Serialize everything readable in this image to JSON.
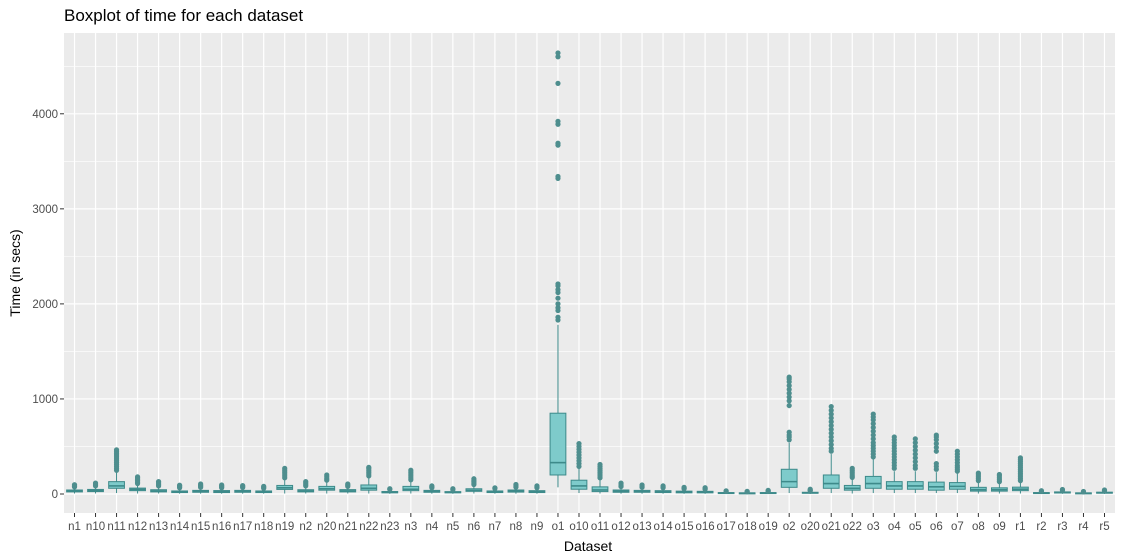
{
  "chart_data": {
    "type": "boxplot",
    "title": "Boxplot of time for each dataset",
    "xlabel": "Dataset",
    "ylabel": "Time (in secs)",
    "ylim": [
      -200,
      4850
    ],
    "yticks": [
      0,
      1000,
      2000,
      3000,
      4000
    ],
    "grid": true,
    "legend": "none",
    "colors": {
      "panel": "#ebebeb",
      "grid": "#ffffff",
      "box_fill": "#7ecbcb",
      "box_line": "#3d8a8a",
      "outlier": "#4e8e8e"
    },
    "categories": [
      "n1",
      "n10",
      "n11",
      "n12",
      "n13",
      "n14",
      "n15",
      "n16",
      "n17",
      "n18",
      "n19",
      "n2",
      "n20",
      "n21",
      "n22",
      "n23",
      "n3",
      "n4",
      "n5",
      "n6",
      "n7",
      "n8",
      "n9",
      "o1",
      "o10",
      "o11",
      "o12",
      "o13",
      "o14",
      "o15",
      "o16",
      "o17",
      "o18",
      "o19",
      "o2",
      "o20",
      "o21",
      "o22",
      "o3",
      "o4",
      "o5",
      "o6",
      "o7",
      "o8",
      "o9",
      "r1",
      "r2",
      "r3",
      "r4",
      "r5"
    ],
    "boxes": [
      {
        "q1": 22,
        "median": 32,
        "q3": 42,
        "whisker_low": 5,
        "whisker_high": 65,
        "outliers": [
          75,
          82,
          90,
          98
        ]
      },
      {
        "q1": 25,
        "median": 35,
        "q3": 48,
        "whisker_low": 5,
        "whisker_high": 75,
        "outliers": [
          85,
          95,
          105,
          115
        ]
      },
      {
        "q1": 60,
        "median": 85,
        "q3": 130,
        "whisker_low": 10,
        "whisker_high": 230,
        "outliers": [
          250,
          270,
          290,
          310,
          330,
          350,
          370,
          390,
          410,
          430,
          450,
          465
        ]
      },
      {
        "q1": 35,
        "median": 48,
        "q3": 62,
        "whisker_low": 5,
        "whisker_high": 100,
        "outliers": [
          110,
          125,
          140,
          155,
          170,
          180
        ]
      },
      {
        "q1": 22,
        "median": 32,
        "q3": 45,
        "whisker_low": 5,
        "whisker_high": 75,
        "outliers": [
          85,
          100,
          115,
          130
        ]
      },
      {
        "q1": 15,
        "median": 22,
        "q3": 32,
        "whisker_low": 3,
        "whisker_high": 55,
        "outliers": [
          65,
          75,
          85,
          92
        ]
      },
      {
        "q1": 18,
        "median": 28,
        "q3": 38,
        "whisker_low": 3,
        "whisker_high": 60,
        "outliers": [
          70,
          80,
          92,
          105
        ]
      },
      {
        "q1": 15,
        "median": 25,
        "q3": 36,
        "whisker_low": 3,
        "whisker_high": 55,
        "outliers": [
          65,
          75,
          85,
          95
        ]
      },
      {
        "q1": 18,
        "median": 27,
        "q3": 38,
        "whisker_low": 3,
        "whisker_high": 58,
        "outliers": [
          68,
          78,
          88
        ]
      },
      {
        "q1": 15,
        "median": 22,
        "q3": 32,
        "whisker_low": 3,
        "whisker_high": 50,
        "outliers": [
          60,
          70,
          80
        ]
      },
      {
        "q1": 48,
        "median": 65,
        "q3": 90,
        "whisker_low": 5,
        "whisker_high": 155,
        "outliers": [
          170,
          190,
          210,
          230,
          250,
          270
        ]
      },
      {
        "q1": 22,
        "median": 32,
        "q3": 45,
        "whisker_low": 5,
        "whisker_high": 70,
        "outliers": [
          85,
          100,
          115,
          130
        ]
      },
      {
        "q1": 40,
        "median": 55,
        "q3": 80,
        "whisker_low": 5,
        "whisker_high": 130,
        "outliers": [
          145,
          160,
          180,
          200
        ]
      },
      {
        "q1": 22,
        "median": 32,
        "q3": 46,
        "whisker_low": 5,
        "whisker_high": 70,
        "outliers": [
          80,
          92,
          105
        ]
      },
      {
        "q1": 40,
        "median": 60,
        "q3": 95,
        "whisker_low": 5,
        "whisker_high": 170,
        "outliers": [
          190,
          210,
          230,
          250,
          270,
          280
        ]
      },
      {
        "q1": 12,
        "median": 18,
        "q3": 26,
        "whisker_low": 2,
        "whisker_high": 40,
        "outliers": [
          48,
          55
        ]
      },
      {
        "q1": 35,
        "median": 50,
        "q3": 80,
        "whisker_low": 5,
        "whisker_high": 140,
        "outliers": [
          150,
          170,
          190,
          210,
          230,
          250
        ]
      },
      {
        "q1": 18,
        "median": 27,
        "q3": 38,
        "whisker_low": 3,
        "whisker_high": 55,
        "outliers": [
          65,
          75,
          85
        ]
      },
      {
        "q1": 12,
        "median": 18,
        "q3": 25,
        "whisker_low": 2,
        "whisker_high": 38,
        "outliers": [
          45,
          55
        ]
      },
      {
        "q1": 28,
        "median": 38,
        "q3": 55,
        "whisker_low": 5,
        "whisker_high": 85,
        "outliers": [
          100,
          115,
          130,
          145,
          160
        ]
      },
      {
        "q1": 15,
        "median": 22,
        "q3": 32,
        "whisker_low": 3,
        "whisker_high": 48,
        "outliers": [
          58,
          65
        ]
      },
      {
        "q1": 20,
        "median": 30,
        "q3": 42,
        "whisker_low": 3,
        "whisker_high": 62,
        "outliers": [
          72,
          85,
          100
        ]
      },
      {
        "q1": 15,
        "median": 24,
        "q3": 35,
        "whisker_low": 3,
        "whisker_high": 55,
        "outliers": [
          65,
          75,
          85
        ]
      },
      {
        "q1": 200,
        "median": 330,
        "q3": 850,
        "whisker_low": 70,
        "whisker_high": 1780,
        "outliers": [
          1830,
          1860,
          1930,
          1960,
          2000,
          2060,
          2120,
          2150,
          2190,
          2210,
          3320,
          3340,
          3670,
          3690,
          3890,
          3920,
          4320,
          4600,
          4640
        ]
      },
      {
        "q1": 50,
        "median": 85,
        "q3": 145,
        "whisker_low": 10,
        "whisker_high": 270,
        "outliers": [
          290,
          320,
          350,
          380,
          410,
          440,
          470,
          500,
          530
        ]
      },
      {
        "q1": 25,
        "median": 42,
        "q3": 75,
        "whisker_low": 5,
        "whisker_high": 150,
        "outliers": [
          170,
          190,
          210,
          230,
          250,
          270,
          290,
          310
        ]
      },
      {
        "q1": 18,
        "median": 28,
        "q3": 42,
        "whisker_low": 3,
        "whisker_high": 65,
        "outliers": [
          78,
          90,
          105,
          115
        ]
      },
      {
        "q1": 18,
        "median": 26,
        "q3": 38,
        "whisker_low": 3,
        "whisker_high": 60,
        "outliers": [
          70,
          82,
          95
        ]
      },
      {
        "q1": 15,
        "median": 24,
        "q3": 35,
        "whisker_low": 3,
        "whisker_high": 55,
        "outliers": [
          65,
          75,
          85
        ]
      },
      {
        "q1": 12,
        "median": 20,
        "q3": 30,
        "whisker_low": 2,
        "whisker_high": 45,
        "outliers": [
          55,
          62,
          70
        ]
      },
      {
        "q1": 12,
        "median": 18,
        "q3": 28,
        "whisker_low": 2,
        "whisker_high": 42,
        "outliers": [
          50,
          58,
          66
        ]
      },
      {
        "q1": 6,
        "median": 10,
        "q3": 15,
        "whisker_low": 1,
        "whisker_high": 22,
        "outliers": [
          28,
          33
        ]
      },
      {
        "q1": 5,
        "median": 8,
        "q3": 12,
        "whisker_low": 1,
        "whisker_high": 18,
        "outliers": [
          24,
          28
        ]
      },
      {
        "q1": 6,
        "median": 10,
        "q3": 15,
        "whisker_low": 1,
        "whisker_high": 22,
        "outliers": [
          28,
          33,
          38
        ]
      },
      {
        "q1": 70,
        "median": 130,
        "q3": 260,
        "whisker_low": 10,
        "whisker_high": 540,
        "outliers": [
          570,
          600,
          620,
          650,
          930,
          980,
          1020,
          1060,
          1100,
          1140,
          1180,
          1210,
          1230
        ]
      },
      {
        "q1": 8,
        "median": 12,
        "q3": 18,
        "whisker_low": 1,
        "whisker_high": 28,
        "outliers": [
          35,
          40,
          50
        ]
      },
      {
        "q1": 60,
        "median": 110,
        "q3": 200,
        "whisker_low": 10,
        "whisker_high": 420,
        "outliers": [
          450,
          480,
          520,
          560,
          600,
          640,
          680,
          720,
          760,
          800,
          840,
          880,
          920
        ]
      },
      {
        "q1": 40,
        "median": 60,
        "q3": 90,
        "whisker_low": 5,
        "whisker_high": 160,
        "outliers": [
          175,
          190,
          210,
          230,
          250,
          270
        ]
      },
      {
        "q1": 60,
        "median": 110,
        "q3": 185,
        "whisker_low": 10,
        "whisker_high": 370,
        "outliers": [
          390,
          420,
          450,
          480,
          510,
          540,
          580,
          620,
          660,
          700,
          740,
          780,
          810,
          840
        ]
      },
      {
        "q1": 50,
        "median": 85,
        "q3": 130,
        "whisker_low": 10,
        "whisker_high": 240,
        "outliers": [
          270,
          300,
          330,
          360,
          390,
          420,
          450,
          480,
          510,
          540,
          570,
          600
        ]
      },
      {
        "q1": 50,
        "median": 85,
        "q3": 130,
        "whisker_low": 10,
        "whisker_high": 240,
        "outliers": [
          270,
          300,
          340,
          380,
          420,
          460,
          500,
          540,
          580
        ]
      },
      {
        "q1": 40,
        "median": 75,
        "q3": 125,
        "whisker_low": 10,
        "whisker_high": 230,
        "outliers": [
          260,
          290,
          320,
          450,
          490,
          530,
          570,
          600,
          620
        ]
      },
      {
        "q1": 50,
        "median": 80,
        "q3": 120,
        "whisker_low": 10,
        "whisker_high": 220,
        "outliers": [
          240,
          260,
          280,
          300,
          330,
          360,
          390,
          420,
          450
        ]
      },
      {
        "q1": 30,
        "median": 45,
        "q3": 70,
        "whisker_low": 5,
        "whisker_high": 125,
        "outliers": [
          140,
          160,
          180,
          200,
          220
        ]
      },
      {
        "q1": 30,
        "median": 45,
        "q3": 65,
        "whisker_low": 5,
        "whisker_high": 115,
        "outliers": [
          130,
          150,
          170,
          190,
          205
        ]
      },
      {
        "q1": 35,
        "median": 50,
        "q3": 72,
        "whisker_low": 5,
        "whisker_high": 125,
        "outliers": [
          140,
          160,
          180,
          200,
          220,
          240,
          260,
          280,
          300,
          320,
          340,
          360,
          380
        ]
      },
      {
        "q1": 6,
        "median": 10,
        "q3": 15,
        "whisker_low": 1,
        "whisker_high": 22,
        "outliers": [
          28,
          34
        ]
      },
      {
        "q1": 10,
        "median": 15,
        "q3": 22,
        "whisker_low": 2,
        "whisker_high": 32,
        "outliers": [
          40,
          48
        ]
      },
      {
        "q1": 5,
        "median": 8,
        "q3": 12,
        "whisker_low": 1,
        "whisker_high": 18,
        "outliers": [
          22,
          26
        ]
      },
      {
        "q1": 8,
        "median": 13,
        "q3": 19,
        "whisker_low": 1,
        "whisker_high": 28,
        "outliers": [
          35,
          42
        ]
      }
    ]
  }
}
